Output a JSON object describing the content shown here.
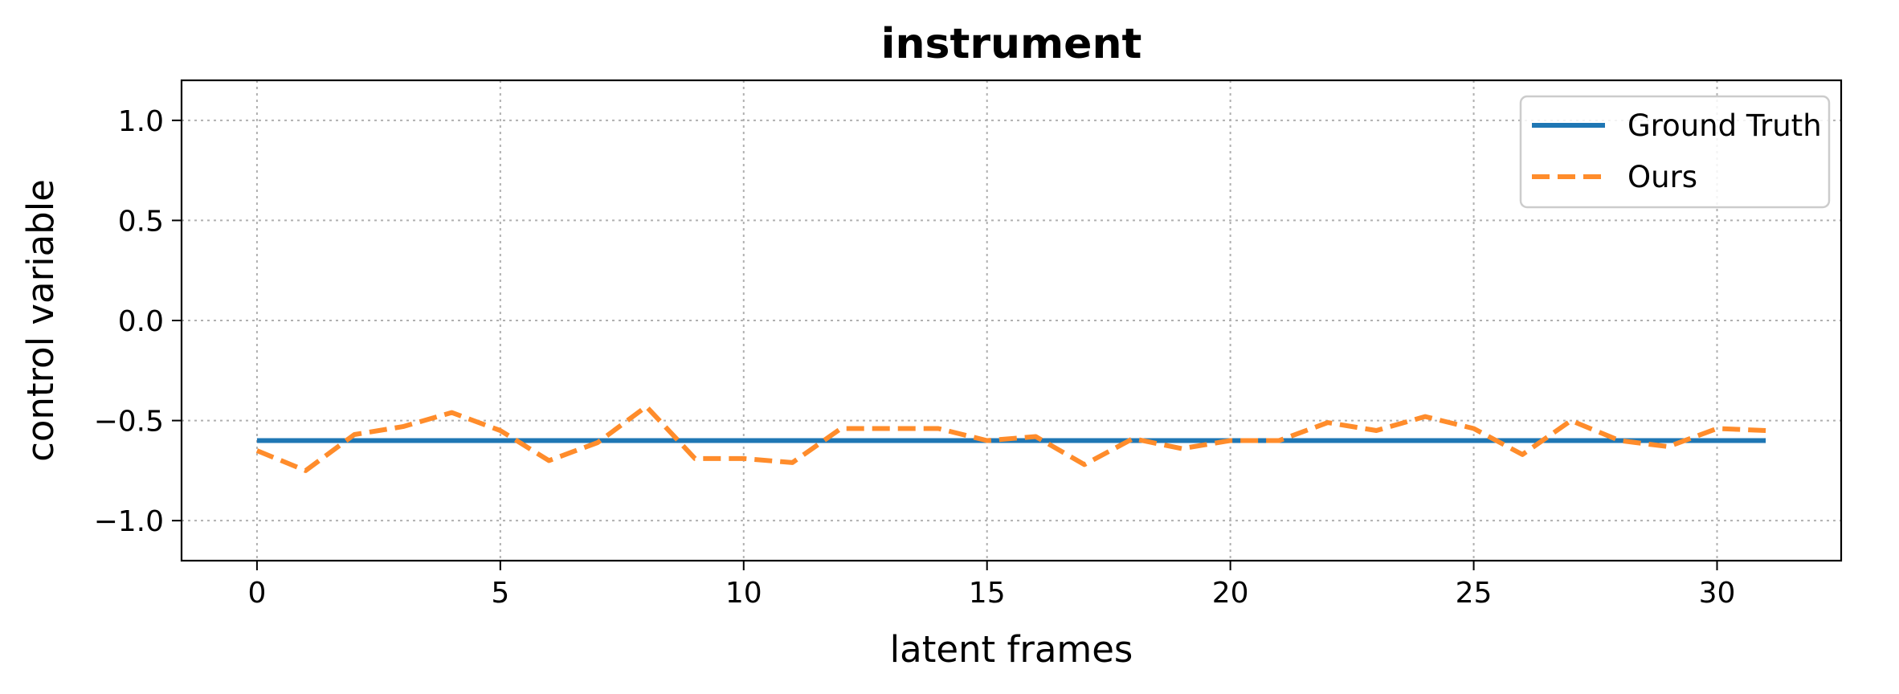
{
  "chart_data": {
    "type": "line",
    "title": "instrument",
    "xlabel": "latent frames",
    "ylabel": "control variable",
    "xlim": [
      -1.55,
      32.55
    ],
    "ylim": [
      -1.2,
      1.2
    ],
    "xticks": [
      0,
      5,
      10,
      15,
      20,
      25,
      30
    ],
    "yticks": [
      1.0,
      0.5,
      0.0,
      -0.5,
      -1.0
    ],
    "ytick_labels": [
      "1.0",
      "0.5",
      "0.0",
      "−0.5",
      "−1.0"
    ],
    "grid": true,
    "legend_position": "top-right",
    "series": [
      {
        "name": "Ground Truth",
        "color": "#1f77b4",
        "style": "solid",
        "x": [
          0,
          31
        ],
        "y": [
          -0.6,
          -0.6
        ]
      },
      {
        "name": "Ours",
        "color": "#ff8c2b",
        "style": "dashed",
        "x": [
          0,
          1,
          2,
          3,
          4,
          5,
          6,
          7,
          8,
          9,
          10,
          11,
          12,
          13,
          14,
          15,
          16,
          17,
          18,
          19,
          20,
          21,
          22,
          23,
          24,
          25,
          26,
          27,
          28,
          29,
          30,
          31
        ],
        "y": [
          -0.65,
          -0.75,
          -0.57,
          -0.53,
          -0.46,
          -0.55,
          -0.7,
          -0.61,
          -0.43,
          -0.69,
          -0.69,
          -0.71,
          -0.54,
          -0.54,
          -0.54,
          -0.6,
          -0.58,
          -0.72,
          -0.59,
          -0.64,
          -0.6,
          -0.6,
          -0.51,
          -0.55,
          -0.48,
          -0.54,
          -0.67,
          -0.5,
          -0.6,
          -0.63,
          -0.54,
          -0.55
        ]
      }
    ]
  }
}
